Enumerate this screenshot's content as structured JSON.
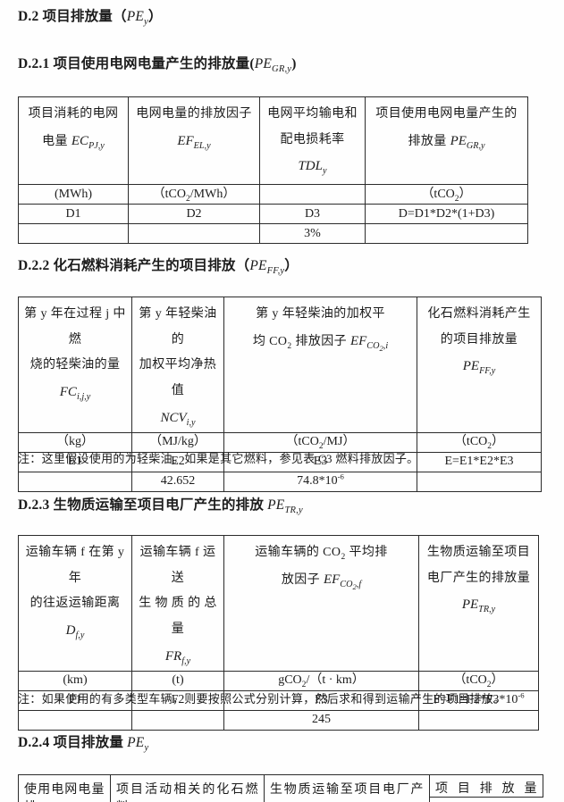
{
  "headings": {
    "d2": "D.2 项目排放量（[v]PE[s]y[/s][/v]）",
    "d21": "D.2.1 项目使用电网电量产生的排放量([v]PE[s]GR,y[/s][/v])",
    "d22": "D.2.2 化石燃料消耗产生的项目排放（[v]PE[s]FF,y[/s][/v]）",
    "d23": "D.2.3 生物质运输至项目电厂产生的排放 [v]PE[s]TR,y[/s][/v]",
    "d24": "D.2.4 项目排放量 [v]PE[s]y[/s][/v]"
  },
  "notes": {
    "fuel": "注：这里假设使用的为轻柴油。如果是其它燃料，参见表 C3 燃料排放因子。",
    "vehicle": "注：如果使用的有多类型车辆，则要按照公式分别计算，然后求和得到运输产生的项目排放。"
  },
  "tables": {
    "t1": {
      "header": [
        "项目消耗的电网\n电量 [v]EC[s]PJ,y[/s][/v]",
        "电网电量的排放因子\n[v]EF[s]EL,y[/s][/v]",
        "电网平均输电和\n配电损耗率\n[v]TDL[s]y[/s][/v]",
        "项目使用电网电量产生的\n排放量 [v]PE[s]GR,y[/s][/v]"
      ],
      "rows": [
        [
          "(MWh)",
          "（tCO[s]2[/s]/MWh）",
          "",
          "（tCO[s]2[/s]）"
        ],
        [
          "D1",
          "D2",
          "D3",
          "D=D1*D2*(1+D3)"
        ],
        [
          "",
          "",
          "3%",
          ""
        ]
      ]
    },
    "t2": {
      "header": [
        "第 y 年在过程 j 中燃\n烧的轻柴油的量\n[v]FC[s]i,j,y[/s][/v]",
        "第 y 年轻柴油的\n加权平均净热值\n[v]NCV[s]i,y[/s][/v]",
        "第 y 年轻柴油的加权平\n均 CO[s]2[/s] 排放因子 [v]EF[s]CO[s]2[/s],i[/s][/v]",
        "化石燃料消耗产生\n的项目排放量\n[v]PE[s]FF,y[/s][/v]"
      ],
      "rows": [
        [
          "（kg）",
          "（MJ/kg）",
          "（tCO[s]2[/s]/MJ）",
          "（tCO[s]2[/s]）"
        ],
        [
          "E1",
          "E2",
          "E3",
          "E=E1*E2*E3"
        ],
        [
          "",
          "42.652",
          "74.8*10[p]-6[/p]",
          ""
        ]
      ]
    },
    "t3": {
      "header": [
        "运输车辆 f 在第 y 年\n的往返运输距离 [v]D[s]f,y[/s][/v]",
        "运输车辆 f 运送\n生 物 质 的 总 量\n[v]FR[s]f,y[/s][/v]",
        "运输车辆的 CO[s]2[/s] 平均排\n放因子 [v]EF[s]CO[s]2[/s],f[/s][/v]",
        "生物质运输至项目\n电厂产生的排放量\n[v]PE[s]TR,y[/s][/v]"
      ],
      "rows": [
        [
          "(km)",
          "(t)",
          "gCO[s]2[/s]/（t · km）",
          "（tCO[s]2[/s]）"
        ],
        [
          "F1",
          "F2",
          "F3",
          "F=F1*F2*F3*10[p]-6[/p]"
        ],
        [
          "",
          "",
          "245",
          ""
        ]
      ]
    },
    "t4": {
      "header": [
        "使用电网电量排",
        "项目活动相关的化石燃料",
        "生物质运输至项目电厂产",
        "项目排放量"
      ]
    }
  }
}
